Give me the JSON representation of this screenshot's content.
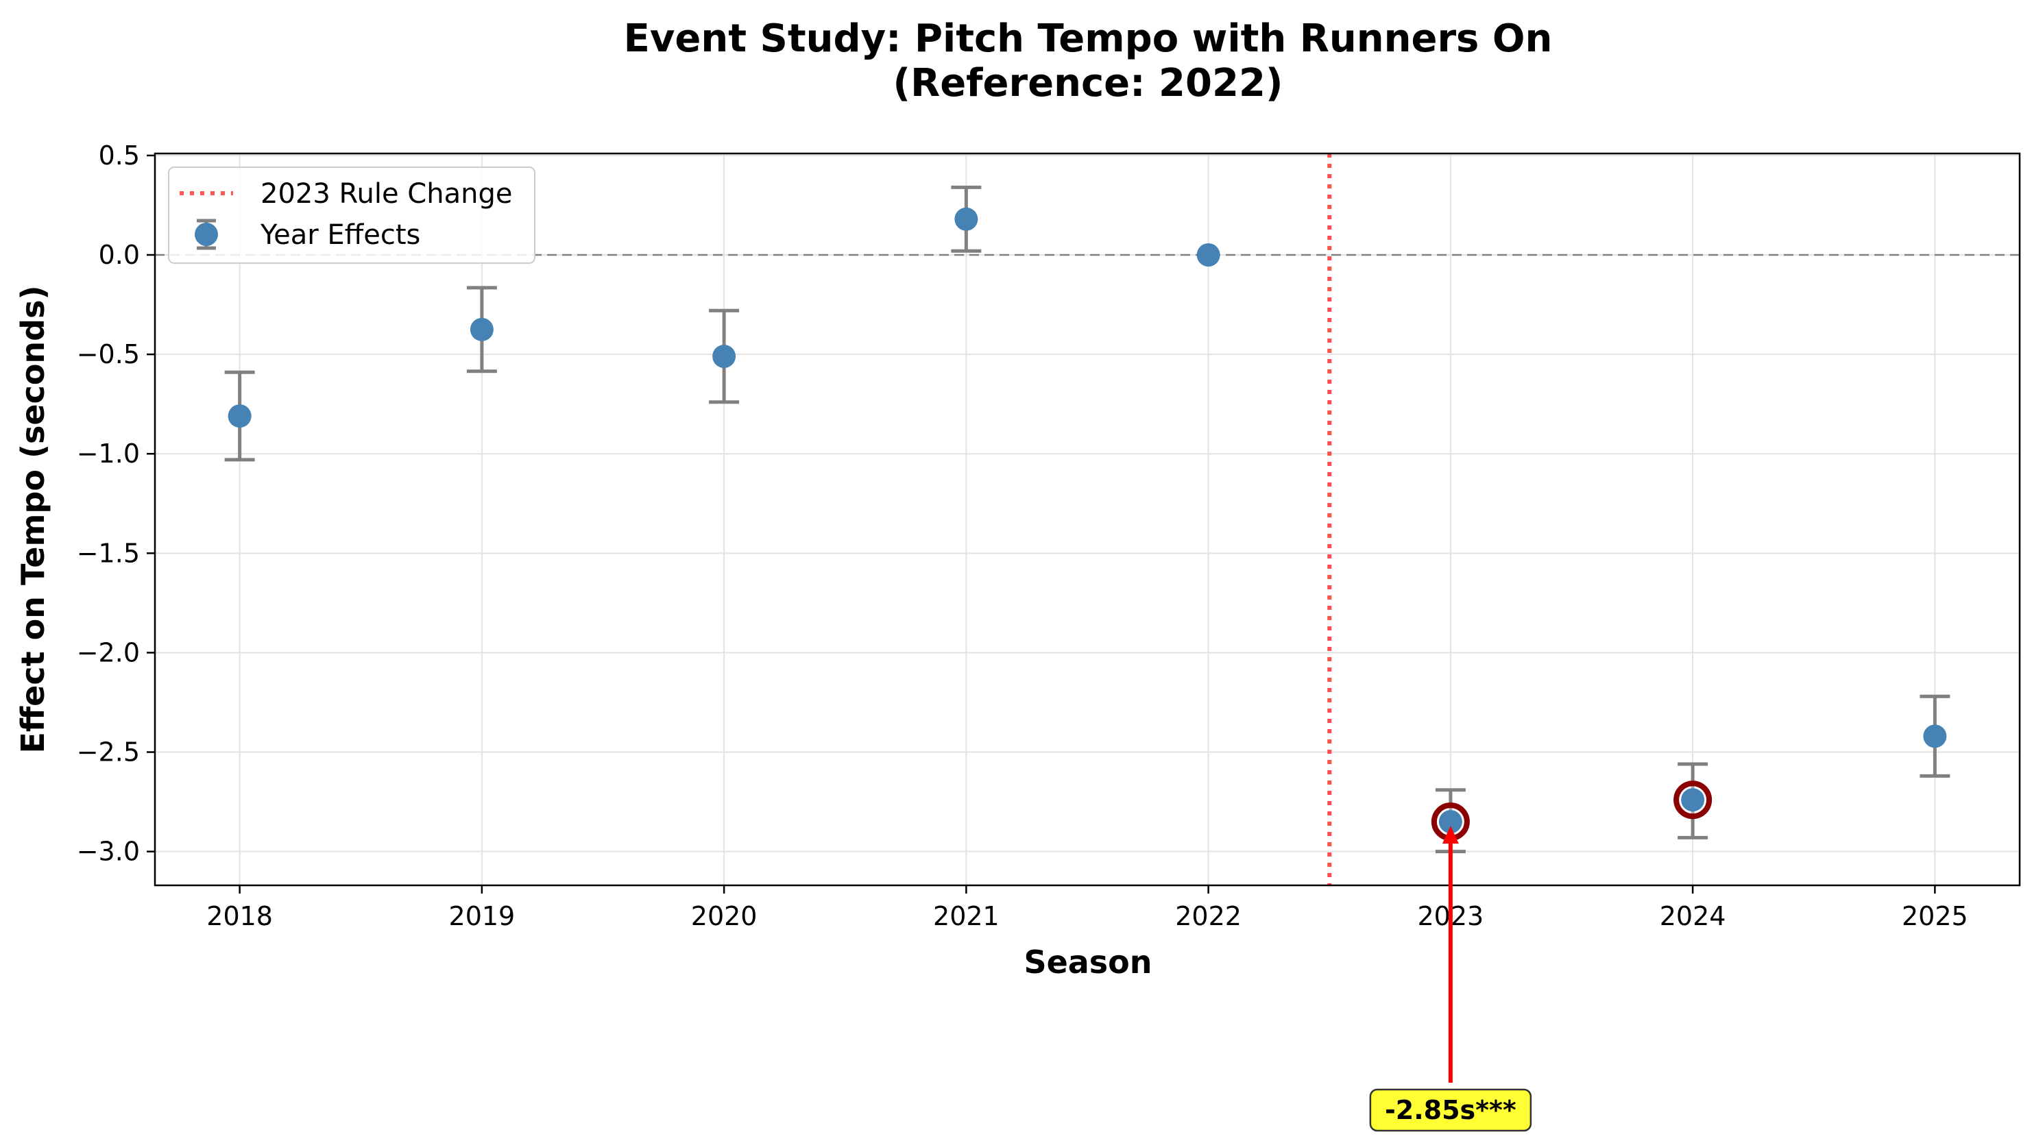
{
  "chart_data": {
    "type": "scatter",
    "title": "Event Study: Pitch Tempo with Runners On",
    "subtitle": "(Reference: 2022)",
    "xlabel": "Season",
    "ylabel": "Effect on Tempo (seconds)",
    "categories": [
      "2018",
      "2019",
      "2020",
      "2021",
      "2022",
      "2023",
      "2024",
      "2025"
    ],
    "x": [
      2018,
      2019,
      2020,
      2021,
      2022,
      2023,
      2024,
      2025
    ],
    "xlim": [
      2017.65,
      2025.35
    ],
    "ylim": [
      -3.17,
      0.51
    ],
    "yticks": [
      0.5,
      0.0,
      -0.5,
      -1.0,
      -1.5,
      -2.0,
      -2.5,
      -3.0
    ],
    "ytick_labels": [
      "0.5",
      "0.0",
      "−0.5",
      "−1.0",
      "−1.5",
      "−2.0",
      "−2.5",
      "−3.0"
    ],
    "grid": true,
    "legend_position": "top-left",
    "series": [
      {
        "name": "Year Effects",
        "values": [
          -0.81,
          -0.375,
          -0.51,
          0.18,
          0.0,
          -2.85,
          -2.74,
          -2.42
        ],
        "ci_lower": [
          -1.03,
          -0.585,
          -0.74,
          0.02,
          0.0,
          -3.0,
          -2.93,
          -2.62
        ],
        "ci_upper": [
          -0.59,
          -0.165,
          -0.28,
          0.34,
          0.0,
          -2.69,
          -2.56,
          -2.22
        ],
        "highlighted": [
          2023,
          2024
        ],
        "color": "#4682b4",
        "errorbar_color": "#808080",
        "highlight_edge_color": "#8b0000"
      }
    ],
    "reference_lines": [
      {
        "orientation": "horizontal",
        "value": 0.0,
        "style": "dashed",
        "color": "#808080"
      },
      {
        "orientation": "vertical",
        "value": 2022.5,
        "style": "dotted",
        "color": "#ff3b3b",
        "label": "2023 Rule Change"
      }
    ],
    "annotations": [
      {
        "text": "-2.85s***",
        "x": 2023,
        "y": -2.85,
        "arrow_color": "#ff0000",
        "box_color": "#ffff33"
      }
    ]
  }
}
